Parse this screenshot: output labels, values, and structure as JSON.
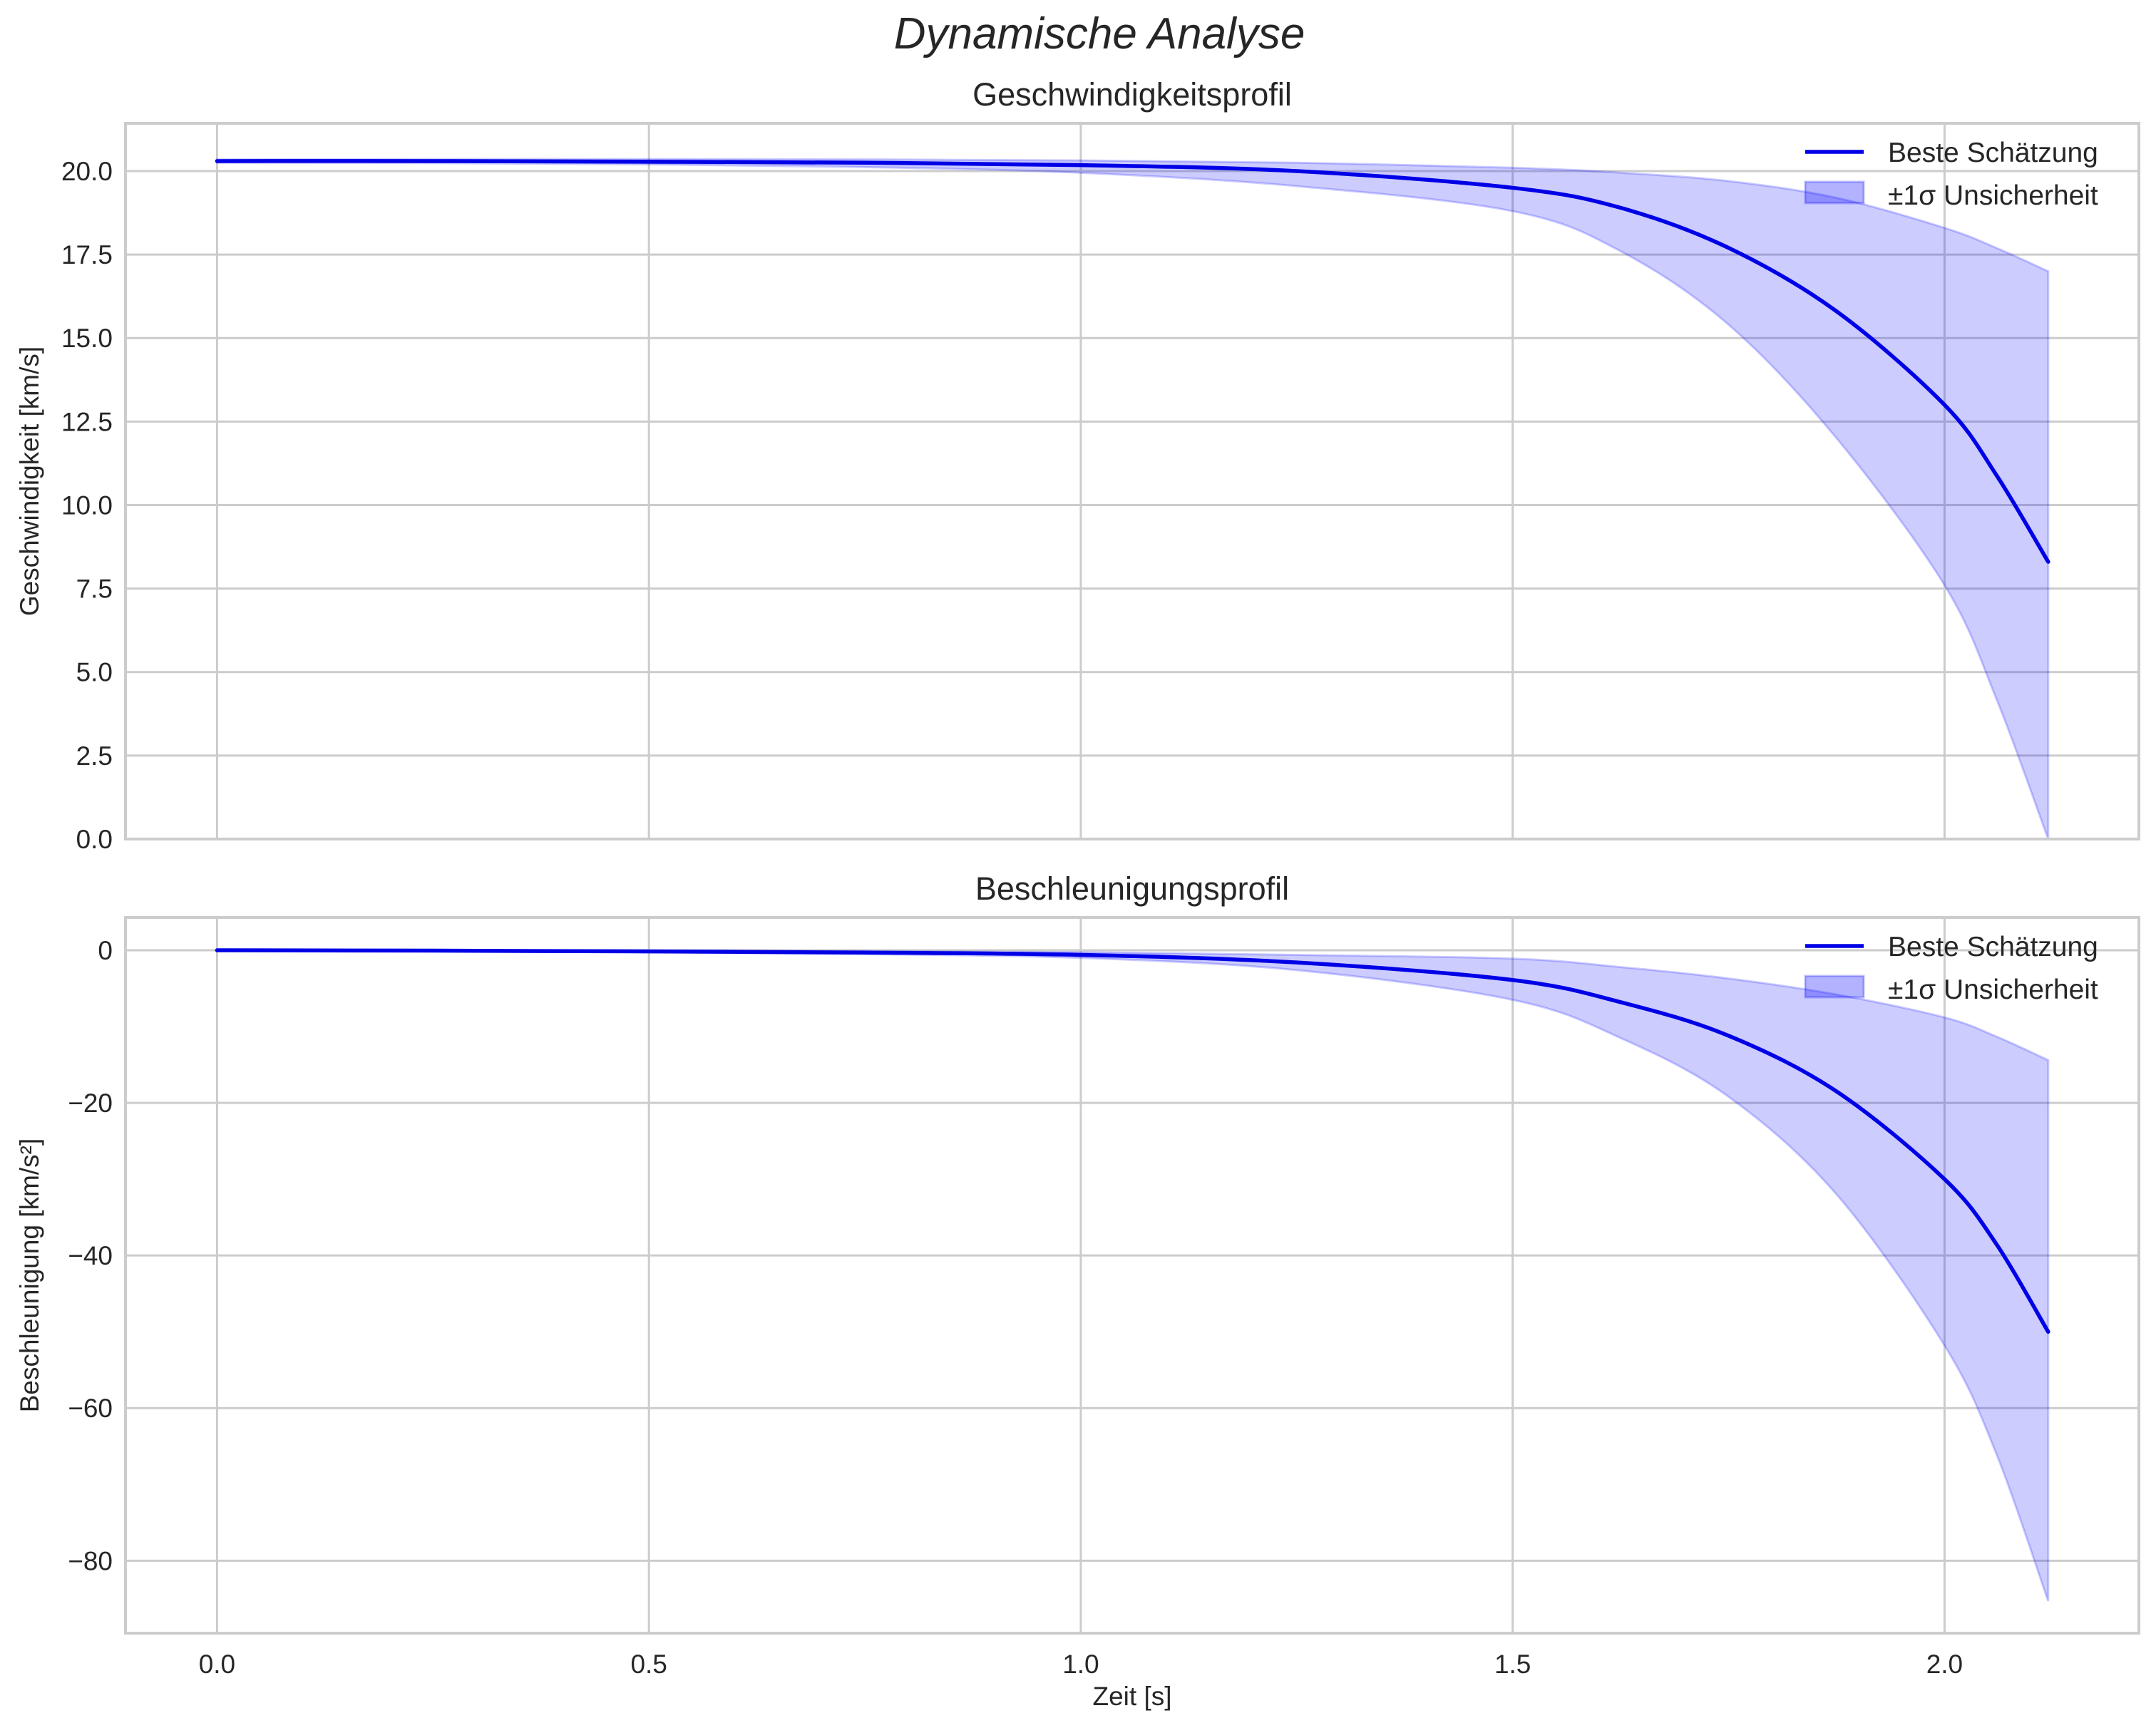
{
  "figure": {
    "title": "Dynamische Analyse",
    "xlabel": "Zeit [s]",
    "colors": {
      "line": "#0000e6",
      "band_fill": "#0000ff",
      "band_alpha": 0.2,
      "grid": "#cccccc",
      "text": "#262626"
    }
  },
  "chart_data": [
    {
      "type": "line",
      "title": "Geschwindigkeitsprofil",
      "xlabel": "",
      "ylabel": "Geschwindigkeit [km/s]",
      "xlim": [
        -0.106,
        2.225
      ],
      "ylim": [
        0,
        21.43
      ],
      "xticks": [
        0.0,
        0.5,
        1.0,
        1.5,
        2.0
      ],
      "xtick_labels": [
        "0.0",
        "0.5",
        "1.0",
        "1.5",
        "2.0"
      ],
      "yticks": [
        0.0,
        2.5,
        5.0,
        7.5,
        10.0,
        12.5,
        15.0,
        17.5,
        20.0
      ],
      "ytick_labels": [
        "0.0",
        "2.5",
        "5.0",
        "7.5",
        "10.0",
        "12.5",
        "15.0",
        "17.5",
        "20.0"
      ],
      "grid": true,
      "legend_position": "upper right",
      "legend": [
        "Beste Schätzung",
        "±1σ Unsicherheit"
      ],
      "x": [
        0,
        0.25,
        0.5,
        0.75,
        1.0,
        1.25,
        1.5,
        1.625,
        1.75,
        1.875,
        2.0,
        2.06,
        2.12
      ],
      "series": [
        {
          "name": "Beste Schätzung",
          "kind": "line",
          "values": [
            20.3,
            20.3,
            20.28,
            20.25,
            20.18,
            20.0,
            19.5,
            18.9,
            17.7,
            15.8,
            13.0,
            10.9,
            8.3
          ]
        },
        {
          "name": "±1σ Unsicherheit",
          "kind": "band",
          "lower": [
            20.25,
            20.24,
            20.2,
            20.12,
            19.95,
            19.55,
            18.8,
            17.6,
            15.4,
            12.0,
            7.6,
            4.2,
            0.0
          ],
          "upper": [
            20.35,
            20.36,
            20.36,
            20.35,
            20.32,
            20.25,
            20.1,
            19.95,
            19.7,
            19.2,
            18.3,
            17.7,
            17.0
          ]
        }
      ]
    },
    {
      "type": "line",
      "title": "Beschleunigungsprofil",
      "xlabel": "Zeit [s]",
      "ylabel": "Beschleunigung [km/s²]",
      "xlim": [
        -0.106,
        2.225
      ],
      "ylim": [
        -89.5,
        4.3
      ],
      "xticks": [
        0.0,
        0.5,
        1.0,
        1.5,
        2.0
      ],
      "xtick_labels": [
        "0.0",
        "0.5",
        "1.0",
        "1.5",
        "2.0"
      ],
      "yticks": [
        0,
        -20,
        -40,
        -60,
        -80
      ],
      "ytick_labels": [
        "0",
        "−20",
        "−40",
        "−60",
        "−80"
      ],
      "grid": true,
      "legend_position": "upper right",
      "legend": [
        "Beste Schätzung",
        "±1σ Unsicherheit"
      ],
      "x": [
        0,
        0.25,
        0.5,
        0.75,
        1.0,
        1.25,
        1.5,
        1.625,
        1.75,
        1.875,
        2.0,
        2.06,
        2.12
      ],
      "series": [
        {
          "name": "Beste Schätzung",
          "kind": "line",
          "values": [
            0,
            -0.05,
            -0.15,
            -0.3,
            -0.6,
            -1.6,
            -3.9,
            -6.8,
            -11.2,
            -18.5,
            -30.0,
            -38.5,
            -50.0
          ]
        },
        {
          "name": "±1σ Unsicherheit",
          "kind": "band",
          "lower": [
            0,
            -0.1,
            -0.25,
            -0.5,
            -1.0,
            -2.6,
            -6.5,
            -11.5,
            -19.2,
            -32.0,
            -51.8,
            -66.0,
            -85.3
          ],
          "upper": [
            0,
            -0.02,
            -0.05,
            -0.12,
            -0.25,
            -0.6,
            -1.1,
            -2.2,
            -3.7,
            -5.8,
            -8.8,
            -11.3,
            -14.4
          ]
        }
      ]
    }
  ]
}
